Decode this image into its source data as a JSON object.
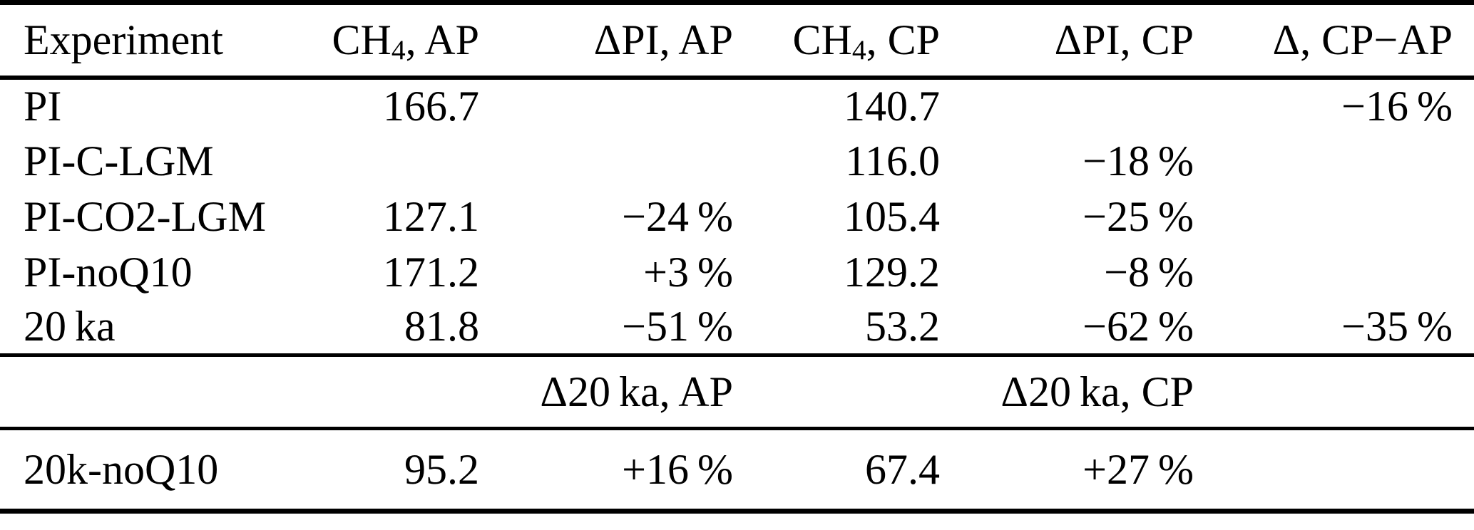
{
  "table": {
    "title": "methane-experiments-table",
    "columns": [
      {
        "pre": "Experiment",
        "sub": "",
        "post": ""
      },
      {
        "pre": "CH",
        "sub": "4",
        "post": ", AP"
      },
      {
        "pre": "ΔPI, AP",
        "sub": "",
        "post": ""
      },
      {
        "pre": "CH",
        "sub": "4",
        "post": ", CP"
      },
      {
        "pre": "ΔPI, CP",
        "sub": "",
        "post": ""
      },
      {
        "pre": "Δ, CP−AP",
        "sub": "",
        "post": ""
      }
    ],
    "rows": [
      [
        "PI",
        "166.7",
        "",
        "140.7",
        "",
        "−16 %"
      ],
      [
        "PI-C-LGM",
        "",
        "",
        "116.0",
        "−18 %",
        ""
      ],
      [
        "PI-CO2-LGM",
        "127.1",
        "−24 %",
        "105.4",
        "−25 %",
        ""
      ],
      [
        "PI-noQ10",
        "171.2",
        "+3 %",
        "129.2",
        "−8 %",
        ""
      ],
      [
        "20 ka",
        "81.8",
        "−51 %",
        "53.2",
        "−62 %",
        "−35 %"
      ]
    ],
    "section_header": [
      "",
      "",
      "Δ20 ka, AP",
      "",
      "Δ20 ka, CP",
      ""
    ],
    "section_rows": [
      [
        "20k-noQ10",
        "95.2",
        "+16 %",
        "67.4",
        "+27 %",
        ""
      ]
    ],
    "colors": {
      "text": "#000000",
      "background": "#ffffff",
      "rule": "#000000"
    }
  }
}
